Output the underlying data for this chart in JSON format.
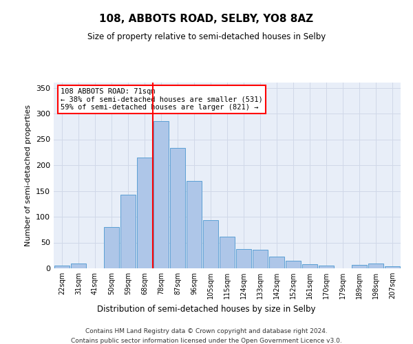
{
  "title": "108, ABBOTS ROAD, SELBY, YO8 8AZ",
  "subtitle": "Size of property relative to semi-detached houses in Selby",
  "xlabel": "Distribution of semi-detached houses by size in Selby",
  "ylabel": "Number of semi-detached properties",
  "categories": [
    "22sqm",
    "31sqm",
    "41sqm",
    "50sqm",
    "59sqm",
    "68sqm",
    "78sqm",
    "87sqm",
    "96sqm",
    "105sqm",
    "115sqm",
    "124sqm",
    "133sqm",
    "142sqm",
    "152sqm",
    "161sqm",
    "170sqm",
    "179sqm",
    "189sqm",
    "198sqm",
    "207sqm"
  ],
  "values": [
    5,
    10,
    0,
    80,
    143,
    215,
    285,
    233,
    170,
    94,
    62,
    37,
    36,
    23,
    15,
    8,
    5,
    0,
    7,
    10,
    4
  ],
  "bar_color": "#aec6e8",
  "bar_edge_color": "#5a9fd4",
  "vline_color": "red",
  "annotation_text": "108 ABBOTS ROAD: 71sqm\n← 38% of semi-detached houses are smaller (531)\n59% of semi-detached houses are larger (821) →",
  "annotation_box_color": "white",
  "annotation_box_edge": "red",
  "ylim": [
    0,
    360
  ],
  "yticks": [
    0,
    50,
    100,
    150,
    200,
    250,
    300,
    350
  ],
  "grid_color": "#d0d8e8",
  "bg_color": "#e8eef8",
  "footer1": "Contains HM Land Registry data © Crown copyright and database right 2024.",
  "footer2": "Contains public sector information licensed under the Open Government Licence v3.0."
}
